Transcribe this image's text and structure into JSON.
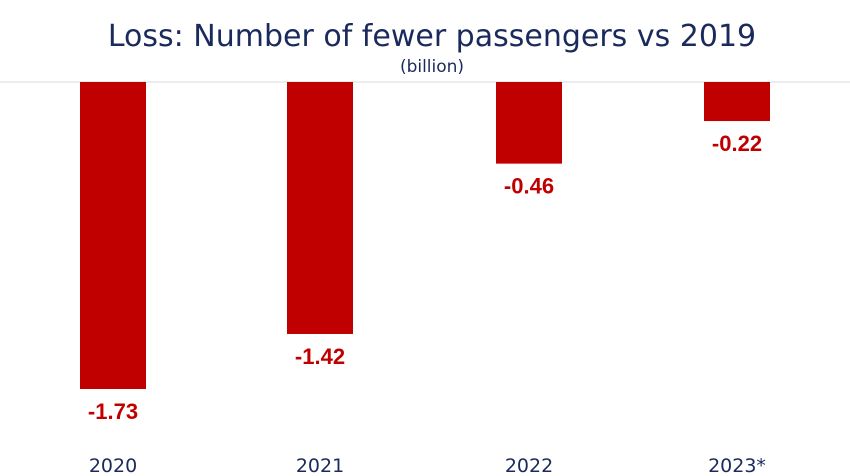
{
  "chart_data": {
    "type": "bar",
    "title": "Loss: Number of fewer passengers vs 2019",
    "subtitle": "(billion)",
    "categories": [
      "2020",
      "2021",
      "2022",
      "2023*"
    ],
    "values": [
      -1.73,
      -1.42,
      -0.46,
      -0.22
    ],
    "value_labels": [
      "-1.73",
      "-1.42",
      "-0.46",
      "-0.22"
    ],
    "ylim": [
      -1.73,
      0
    ],
    "grid": false,
    "legend": "none",
    "colors": {
      "bar": "#c00000",
      "value_label": "#c00000",
      "text": "#1b2a5c",
      "baseline": "#d9d9d9"
    }
  }
}
